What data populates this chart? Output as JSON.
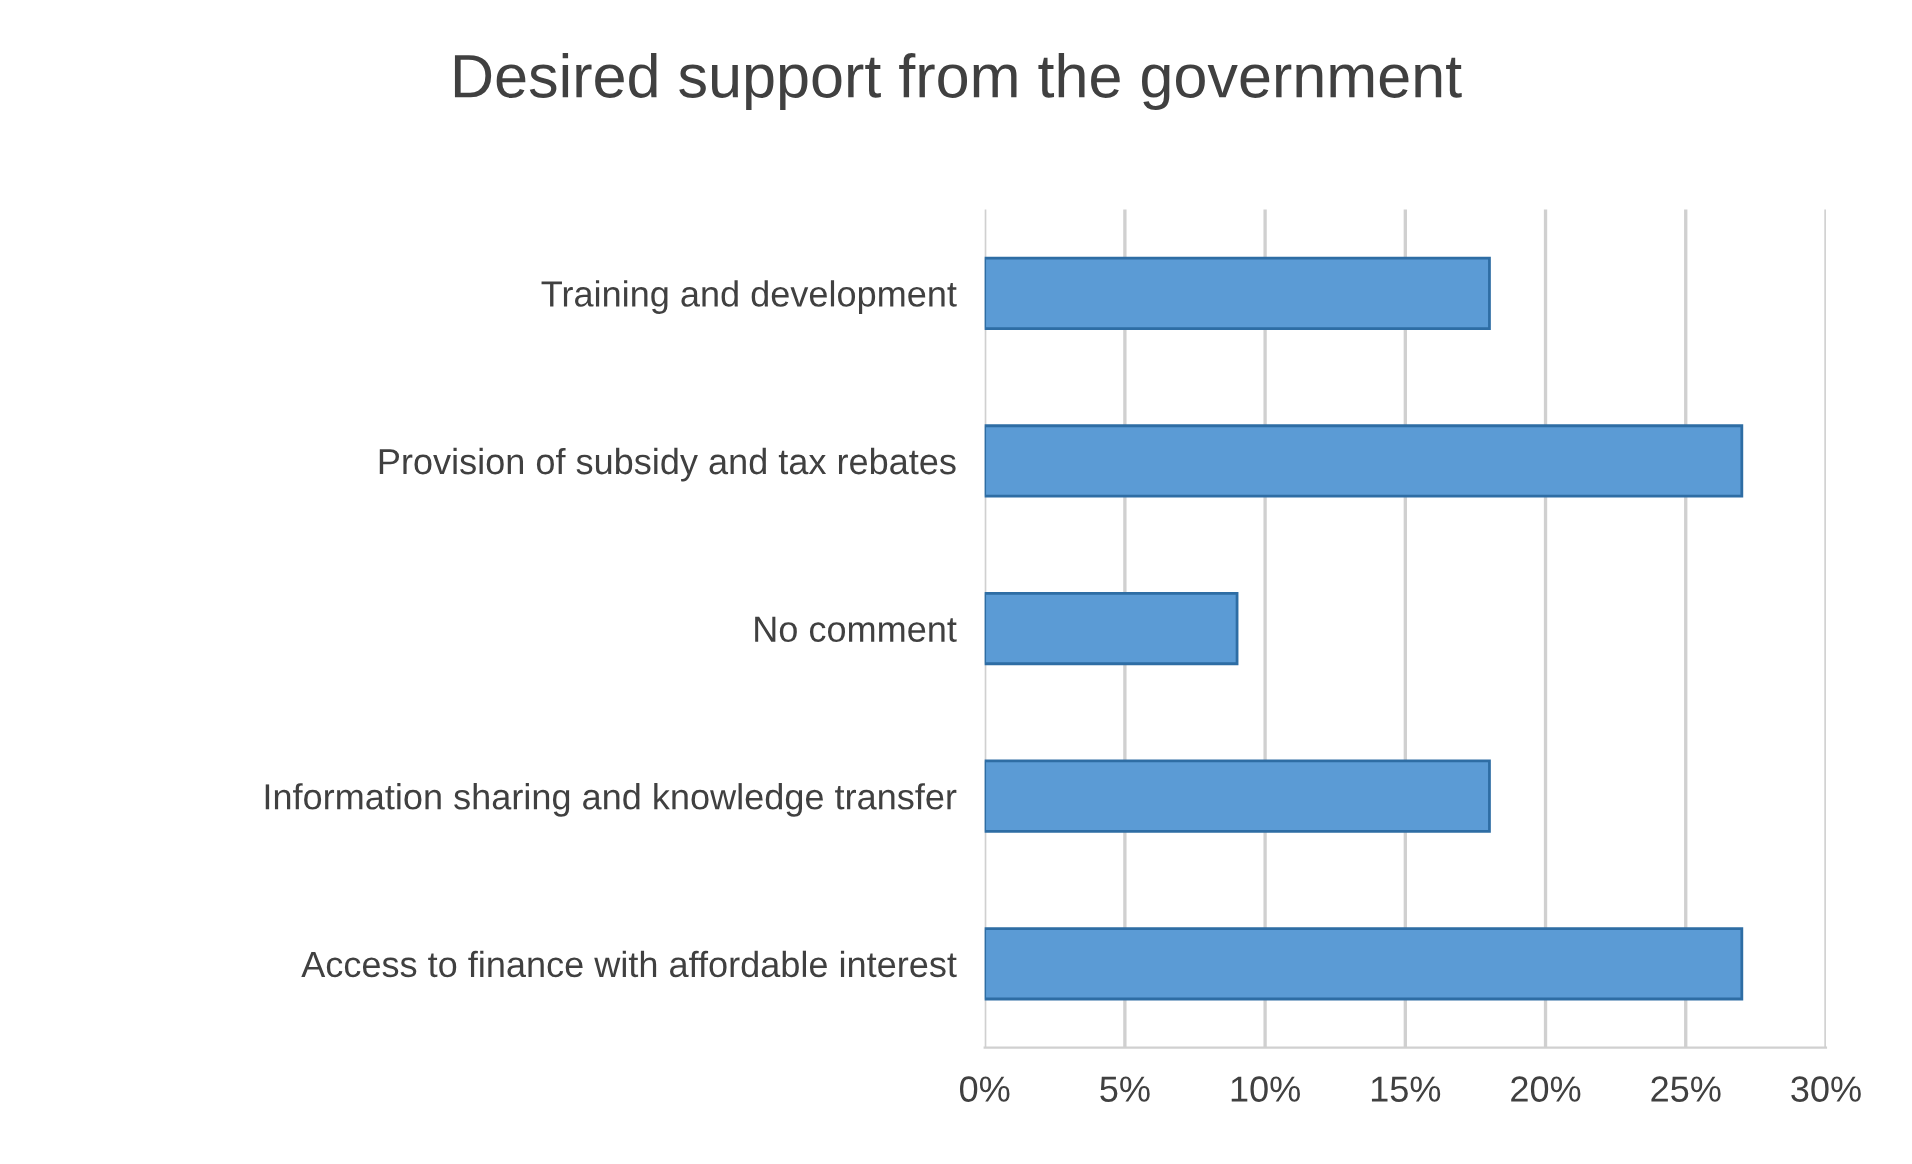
{
  "chart_data": {
    "type": "bar",
    "orientation": "horizontal",
    "title": "Desired support from the government",
    "categories": [
      "Training and development",
      "Provision of subsidy and tax rebates",
      "No comment",
      "Information sharing and knowledge transfer",
      "Access to finance with affordable interest"
    ],
    "values": [
      18,
      27,
      9,
      18,
      27
    ],
    "color": "#5b9bd5",
    "xlim": [
      0,
      30
    ],
    "xticks": [
      {
        "value": 0,
        "label": "0%"
      },
      {
        "value": 5,
        "label": "5%"
      },
      {
        "value": 10,
        "label": "10%"
      },
      {
        "value": 15,
        "label": "15%"
      },
      {
        "value": 20,
        "label": "20%"
      },
      {
        "value": 25,
        "label": "25%"
      },
      {
        "value": 30,
        "label": "30%"
      }
    ],
    "grid": "x",
    "legend": false
  }
}
